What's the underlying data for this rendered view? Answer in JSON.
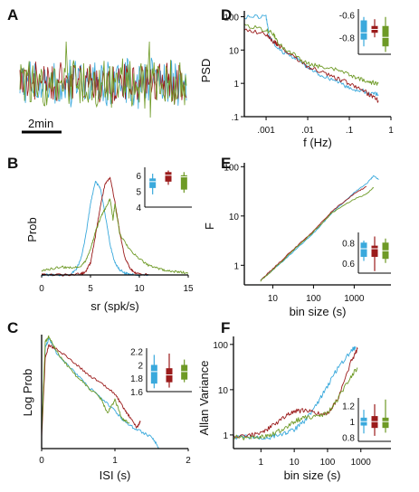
{
  "colors": {
    "blue": "#3aa9dc",
    "red": "#9b1b1b",
    "green": "#6e9a26"
  },
  "panel_letters": [
    "A",
    "B",
    "C",
    "D",
    "E",
    "F"
  ],
  "chart_data": [
    {
      "id": "A",
      "type": "line",
      "scalebar_label": "2min",
      "series": [
        {
          "name": "",
          "color": "blue"
        },
        {
          "name": "",
          "color": "red"
        },
        {
          "name": "",
          "color": "green"
        }
      ]
    },
    {
      "id": "B",
      "type": "line",
      "xlabel": "sr (spk/s)",
      "ylabel": "Prob",
      "xlim": [
        0,
        15
      ],
      "xticks": [
        "0",
        "5",
        "10",
        "15"
      ],
      "xtick_values": [
        0,
        5,
        10,
        15
      ],
      "series": [
        {
          "name": "",
          "color": "blue",
          "x": [
            0,
            1,
            2,
            3,
            3.5,
            4,
            4.5,
            5,
            5.5,
            6,
            6.5,
            7,
            7.5,
            8,
            8.5,
            9,
            10,
            11
          ],
          "y": [
            0,
            0,
            0,
            0.01,
            0.05,
            0.15,
            0.38,
            0.7,
            0.92,
            0.86,
            0.6,
            0.3,
            0.12,
            0.05,
            0.02,
            0.01,
            0,
            0
          ]
        },
        {
          "name": "",
          "color": "red",
          "x": [
            0,
            2,
            3,
            4,
            4.5,
            5,
            5.5,
            6,
            6.5,
            7,
            7.5,
            8,
            8.5,
            9,
            9.5,
            10,
            11
          ],
          "y": [
            0,
            0,
            0,
            0.01,
            0.03,
            0.12,
            0.38,
            0.68,
            0.9,
            0.96,
            0.72,
            0.42,
            0.18,
            0.07,
            0.02,
            0.01,
            0
          ]
        },
        {
          "name": "",
          "color": "green",
          "x": [
            0,
            1,
            2,
            3,
            4,
            4.5,
            5,
            5.5,
            6,
            6.5,
            7,
            7.3,
            7.5,
            8,
            9,
            10,
            11,
            12,
            13,
            14,
            15
          ],
          "y": [
            0.04,
            0.06,
            0.08,
            0.07,
            0.09,
            0.14,
            0.26,
            0.42,
            0.56,
            0.65,
            0.75,
            0.55,
            0.7,
            0.4,
            0.25,
            0.16,
            0.09,
            0.06,
            0.04,
            0.03,
            0.02
          ]
        }
      ],
      "inset": {
        "type": "box",
        "yticks": [
          "4",
          "5",
          "6"
        ],
        "ylim": [
          4,
          6.5
        ],
        "boxes": [
          {
            "color": "blue",
            "whisker_low": 4.8,
            "q1": 5.2,
            "median": 5.6,
            "q3": 5.8,
            "whisker_high": 6.1
          },
          {
            "color": "red",
            "whisker_low": 5.4,
            "q1": 5.6,
            "median": 6.0,
            "q3": 6.2,
            "whisker_high": 6.3
          },
          {
            "color": "green",
            "whisker_low": 4.9,
            "q1": 5.1,
            "median": 5.9,
            "q3": 6.0,
            "whisker_high": 6.2
          }
        ]
      }
    },
    {
      "id": "C",
      "type": "line",
      "xlabel": "ISI (s)",
      "ylabel": "Log Prob",
      "xlim": [
        0,
        2
      ],
      "xticks": [
        "0",
        "1",
        "2"
      ],
      "xtick_values": [
        0,
        1,
        2
      ],
      "series": [
        {
          "name": "",
          "color": "blue",
          "x": [
            0,
            0.05,
            0.1,
            0.2,
            0.4,
            0.6,
            0.8,
            1.0,
            1.1,
            1.2,
            1.3,
            1.5,
            1.6
          ],
          "y": [
            0.1,
            0.9,
            0.98,
            0.85,
            0.7,
            0.55,
            0.42,
            0.3,
            0.22,
            0.16,
            0.12,
            0.05,
            -0.05
          ]
        },
        {
          "name": "",
          "color": "red",
          "x": [
            0,
            0.05,
            0.1,
            0.2,
            0.4,
            0.6,
            0.8,
            1.0,
            1.1,
            1.2,
            1.3,
            1.35
          ],
          "y": [
            0.05,
            0.8,
            0.92,
            0.88,
            0.78,
            0.66,
            0.56,
            0.46,
            0.34,
            0.24,
            0.14,
            0.2
          ]
        },
        {
          "name": "",
          "color": "green",
          "x": [
            0,
            0.05,
            0.1,
            0.2,
            0.4,
            0.6,
            0.8,
            0.9,
            1.0,
            1.1,
            1.2
          ],
          "y": [
            0.08,
            0.95,
            1.0,
            0.86,
            0.68,
            0.54,
            0.42,
            0.28,
            0.4,
            0.22,
            0.18
          ]
        }
      ],
      "inset": {
        "type": "box",
        "yticks": [
          "1.6",
          "1.8",
          "2",
          "2.2"
        ],
        "ylim": [
          1.6,
          2.25
        ],
        "boxes": [
          {
            "color": "blue",
            "whisker_low": 1.65,
            "q1": 1.72,
            "median": 1.9,
            "q3": 2.0,
            "whisker_high": 2.15
          },
          {
            "color": "red",
            "whisker_low": 1.66,
            "q1": 1.74,
            "median": 1.85,
            "q3": 1.95,
            "whisker_high": 2.17
          },
          {
            "color": "green",
            "whisker_low": 1.74,
            "q1": 1.78,
            "median": 1.9,
            "q3": 2.0,
            "whisker_high": 2.08
          }
        ]
      }
    },
    {
      "id": "D",
      "type": "line",
      "scale": "log-log",
      "xlabel": "f (Hz)",
      "ylabel": "PSD",
      "xlim": [
        0.0003,
        1
      ],
      "ylim": [
        0.1,
        150
      ],
      "xticks": [
        ".001",
        ".01",
        ".1",
        "1"
      ],
      "xtick_values": [
        0.001,
        0.01,
        0.1,
        1
      ],
      "yticks": [
        ".1",
        "1",
        "10",
        "100"
      ],
      "ytick_values": [
        0.1,
        1,
        10,
        100
      ],
      "series": [
        {
          "name": "",
          "color": "blue",
          "x": [
            0.0003,
            0.001,
            0.0012,
            0.002,
            0.005,
            0.01,
            0.02,
            0.05,
            0.1,
            0.2,
            0.3,
            0.5
          ],
          "y": [
            100,
            100,
            25,
            10,
            6,
            3,
            1.8,
            1.2,
            0.7,
            0.6,
            0.5,
            0.45
          ]
        },
        {
          "name": "",
          "color": "red",
          "x": [
            0.0003,
            0.001,
            0.0015,
            0.002,
            0.005,
            0.01,
            0.02,
            0.05,
            0.1,
            0.2,
            0.3,
            0.5
          ],
          "y": [
            40,
            30,
            18,
            14,
            6,
            3.2,
            2.3,
            1.4,
            1.0,
            0.7,
            0.45,
            0.3
          ]
        },
        {
          "name": "",
          "color": "green",
          "x": [
            0.0003,
            0.001,
            0.0015,
            0.002,
            0.005,
            0.01,
            0.02,
            0.05,
            0.1,
            0.2,
            0.3,
            0.5
          ],
          "y": [
            55,
            40,
            30,
            15,
            7,
            3.8,
            3.2,
            2.5,
            1.8,
            1.3,
            1.1,
            1.0
          ]
        }
      ],
      "inset": {
        "type": "box",
        "yticks": [
          "-0.8",
          "-0.6"
        ],
        "ylim": [
          -0.95,
          -0.55
        ],
        "boxes": [
          {
            "color": "blue",
            "whisker_low": -0.88,
            "q1": -0.82,
            "median": -0.76,
            "q3": -0.65,
            "whisker_high": -0.62
          },
          {
            "color": "red",
            "whisker_low": -0.8,
            "q1": -0.76,
            "median": -0.73,
            "q3": -0.7,
            "whisker_high": -0.64
          },
          {
            "color": "green",
            "whisker_low": -0.93,
            "q1": -0.88,
            "median": -0.8,
            "q3": -0.7,
            "whisker_high": -0.62
          }
        ]
      }
    },
    {
      "id": "E",
      "type": "line",
      "scale": "log-log",
      "xlabel": "bin size (s)",
      "ylabel": "F",
      "xlim": [
        2,
        8000
      ],
      "ylim": [
        0.4,
        120
      ],
      "xticks": [
        "10",
        "100",
        "1000"
      ],
      "xtick_values": [
        10,
        100,
        1000
      ],
      "yticks": [
        "1",
        "10",
        "100"
      ],
      "ytick_values": [
        1,
        10,
        100
      ],
      "series": [
        {
          "name": "",
          "color": "blue",
          "x": [
            5,
            10,
            30,
            100,
            300,
            1000,
            2000,
            3000,
            4000
          ],
          "y": [
            0.5,
            0.8,
            1.8,
            4.5,
            12,
            30,
            45,
            65,
            55
          ]
        },
        {
          "name": "",
          "color": "red",
          "x": [
            5,
            10,
            30,
            100,
            300,
            1000,
            2000
          ],
          "y": [
            0.5,
            0.85,
            2.0,
            5.0,
            13,
            28,
            40
          ]
        },
        {
          "name": "",
          "color": "green",
          "x": [
            5,
            10,
            30,
            100,
            300,
            1000,
            2000,
            3000
          ],
          "y": [
            0.48,
            0.8,
            1.9,
            4.8,
            12,
            22,
            28,
            38
          ]
        }
      ],
      "inset": {
        "type": "box",
        "yticks": [
          "0.6",
          "0.8"
        ],
        "ylim": [
          0.5,
          0.9
        ],
        "boxes": [
          {
            "color": "blue",
            "whisker_low": 0.62,
            "q1": 0.66,
            "median": 0.74,
            "q3": 0.8,
            "whisker_high": 0.82
          },
          {
            "color": "red",
            "whisker_low": 0.52,
            "q1": 0.66,
            "median": 0.74,
            "q3": 0.77,
            "whisker_high": 0.86
          },
          {
            "color": "green",
            "whisker_low": 0.6,
            "q1": 0.64,
            "median": 0.72,
            "q3": 0.8,
            "whisker_high": 0.84
          }
        ]
      }
    },
    {
      "id": "F",
      "type": "line",
      "scale": "log-log",
      "xlabel": "bin size (s)",
      "ylabel": "Allan Variance",
      "xlim": [
        0.15,
        8000
      ],
      "ylim": [
        0.5,
        150
      ],
      "xticks": [
        "1",
        "10",
        "100",
        "1000"
      ],
      "xtick_values": [
        1,
        10,
        100,
        1000
      ],
      "yticks": [
        "1",
        "10",
        "100"
      ],
      "ytick_values": [
        1,
        10,
        100
      ],
      "series": [
        {
          "name": "",
          "color": "blue",
          "x": [
            0.15,
            0.5,
            1,
            2,
            5,
            10,
            20,
            50,
            100,
            200,
            500,
            700
          ],
          "y": [
            0.9,
            0.9,
            0.85,
            0.9,
            1.1,
            1.3,
            2,
            5,
            12,
            30,
            70,
            90
          ]
        },
        {
          "name": "",
          "color": "red",
          "x": [
            0.15,
            0.5,
            1,
            2,
            5,
            10,
            20,
            50,
            100,
            200,
            500,
            800
          ],
          "y": [
            0.9,
            1.0,
            1.1,
            1.5,
            2.5,
            3.3,
            3.5,
            3.0,
            3.0,
            6,
            40,
            80
          ]
        },
        {
          "name": "",
          "color": "green",
          "x": [
            0.15,
            0.5,
            1,
            2,
            5,
            10,
            20,
            50,
            100,
            200,
            500,
            800
          ],
          "y": [
            0.9,
            0.85,
            0.9,
            1.0,
            1.4,
            2.0,
            2.4,
            2.5,
            3,
            6,
            20,
            30
          ]
        }
      ],
      "inset": {
        "type": "box",
        "yticks": [
          "0.8",
          "1",
          "1.2"
        ],
        "ylim": [
          0.75,
          1.3
        ],
        "boxes": [
          {
            "color": "blue",
            "whisker_low": 0.85,
            "q1": 0.95,
            "median": 1.0,
            "q3": 1.05,
            "whisker_high": 1.15
          },
          {
            "color": "red",
            "whisker_low": 0.82,
            "q1": 0.92,
            "median": 1.0,
            "q3": 1.07,
            "whisker_high": 1.22
          },
          {
            "color": "green",
            "whisker_low": 0.86,
            "q1": 0.92,
            "median": 1.0,
            "q3": 1.05,
            "whisker_high": 1.28
          }
        ]
      }
    }
  ]
}
